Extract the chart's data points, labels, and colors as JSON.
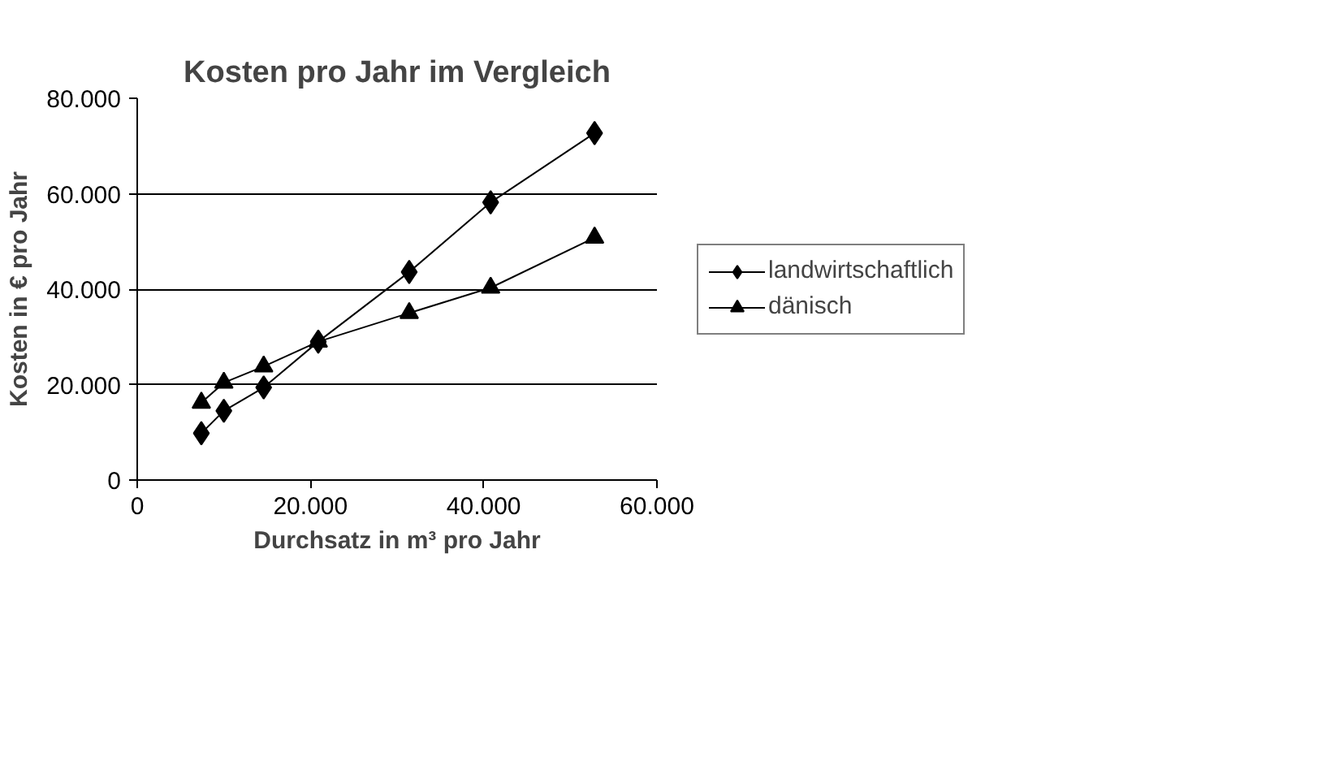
{
  "chart_data": {
    "type": "line",
    "title": "Kosten pro Jahr im Vergleich",
    "xlabel": "Durchsatz in m³ pro Jahr",
    "ylabel": "Kosten in € pro Jahr",
    "x": [
      7400,
      10000,
      14600,
      20900,
      31400,
      40800,
      52800
    ],
    "series": [
      {
        "name": "landwirtschaftlich",
        "color": "#000000",
        "marker": "diamond",
        "values": [
          9800,
          14500,
          19400,
          29000,
          43600,
          58200,
          72700
        ]
      },
      {
        "name": "dänisch",
        "color": "#000000",
        "marker": "triangle",
        "values": [
          16200,
          20400,
          23800,
          29000,
          35000,
          40300,
          50800
        ]
      }
    ],
    "xlim": [
      0,
      60000
    ],
    "ylim": [
      0,
      80000
    ],
    "xticks": [
      0,
      {
        "value": 20000,
        "label": "20.000"
      },
      {
        "value": 40000,
        "label": "40.000"
      },
      {
        "value": 60000,
        "label": "60.000"
      }
    ],
    "yticks": [
      0,
      {
        "value": 20000,
        "label": "20.000"
      },
      {
        "value": 40000,
        "label": "40.000"
      },
      {
        "value": 60000,
        "label": "60.000"
      },
      {
        "value": 80000,
        "label": "80.000"
      }
    ],
    "grid": "y",
    "legend": "right",
    "line_style": "solid"
  }
}
